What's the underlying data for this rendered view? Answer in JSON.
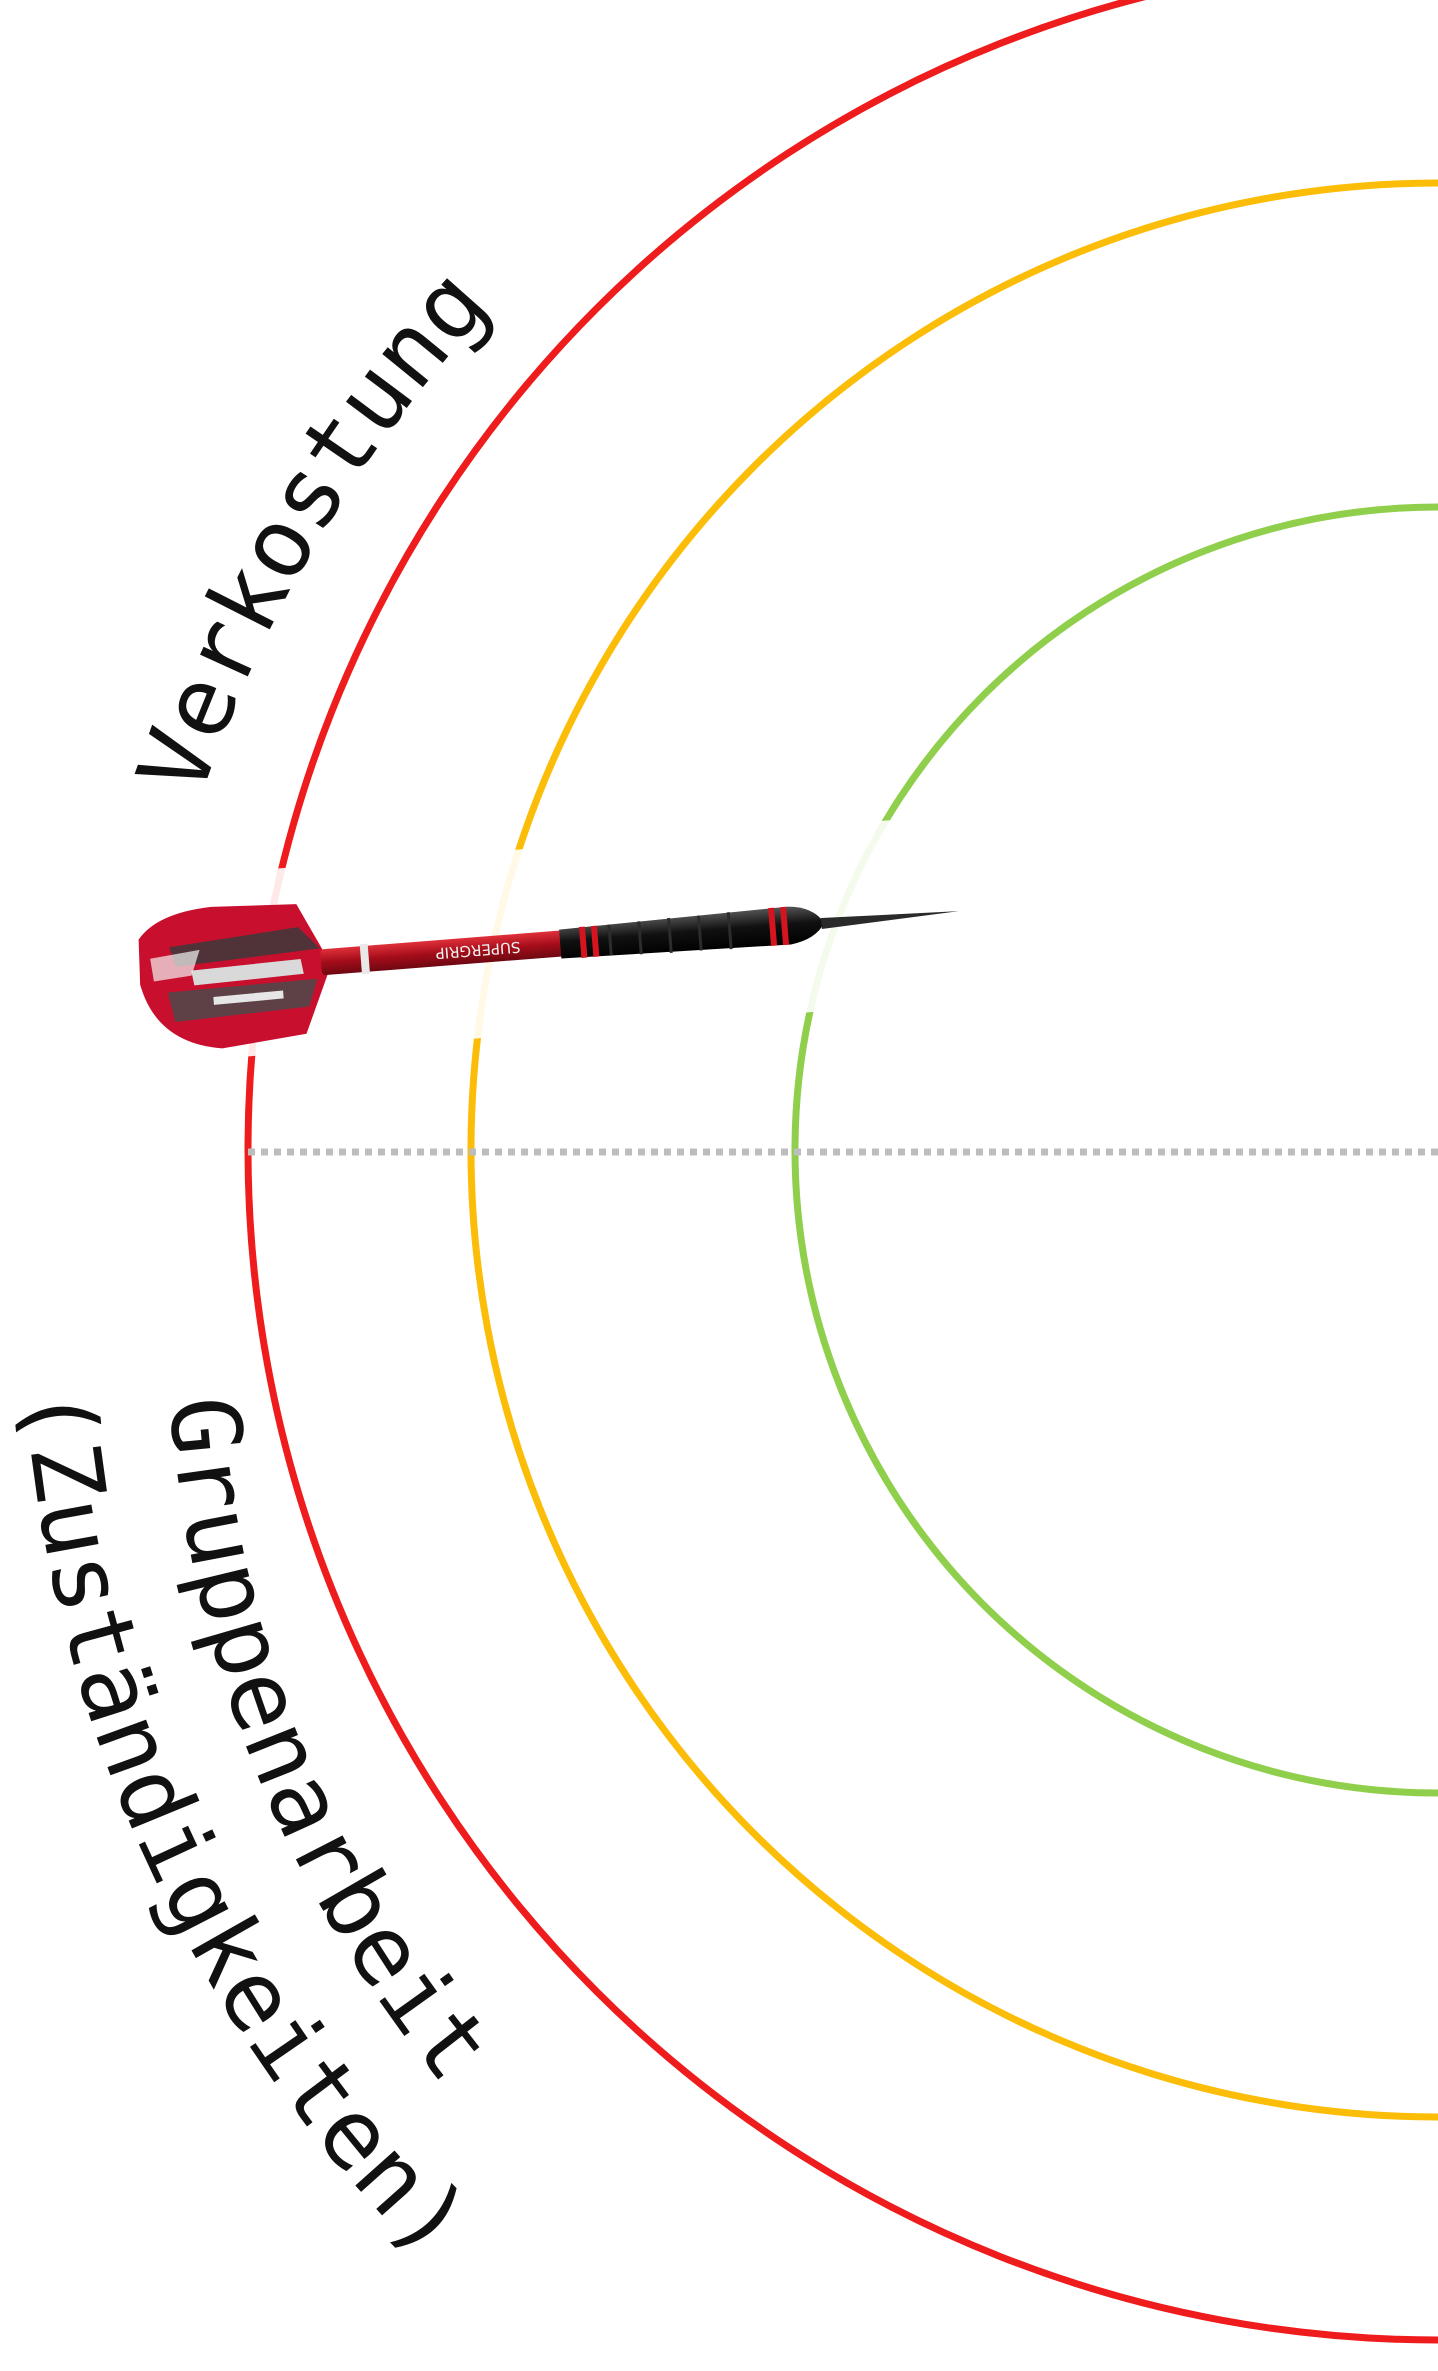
{
  "labels": {
    "top": "Verkostung",
    "bottom_outer": "Gruppenarbeit",
    "bottom_inner": "(Zuständigkeiten)"
  },
  "rings": [
    {
      "name": "outer",
      "color": "#ee1c1c"
    },
    {
      "name": "middle",
      "color": "#fbbd08"
    },
    {
      "name": "inner",
      "color": "#8fcf4c"
    }
  ],
  "divider": {
    "color": "#bdbdbd",
    "style": "dotted"
  },
  "dart": {
    "flight_color": "#c8102e",
    "shaft_color": "#b01020",
    "barrel_color": "#1a1a1a",
    "accent_color": "#d4141e",
    "shaft_text": "SUPERGRIP"
  }
}
